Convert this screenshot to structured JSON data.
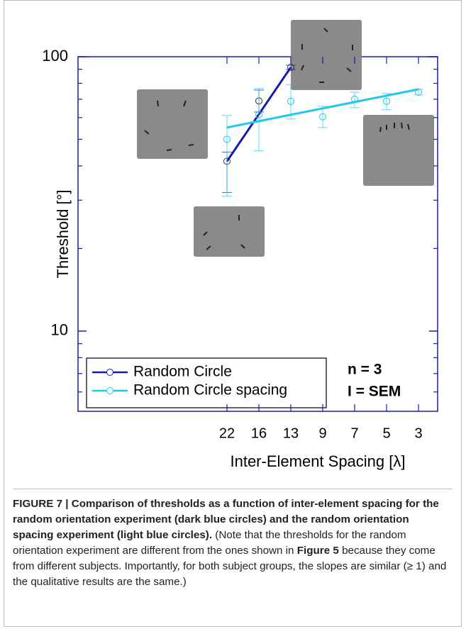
{
  "chart_data": {
    "type": "line",
    "ylabel": "Threshold [°]",
    "xlabel": "Inter-Element Spacing [λ]",
    "categories": [
      "22",
      "16",
      "13",
      "9",
      "7",
      "5",
      "3"
    ],
    "ylim": [
      5.1,
      100
    ],
    "yticks": [
      10,
      100
    ],
    "yticks_minor": [
      6,
      7,
      8,
      9,
      20,
      30,
      40,
      50,
      60,
      70,
      80,
      90
    ],
    "log_y": true,
    "legend": "lower left",
    "series": [
      {
        "name": "Random Circle",
        "color": "#1a1aa8",
        "values": [
          41.6,
          69,
          91.5,
          null,
          null,
          null,
          null
        ],
        "error_low": [
          32,
          62.9,
          89.9,
          null,
          null,
          null,
          null
        ],
        "error_high": [
          44.9,
          75.6,
          93.1,
          null,
          null,
          null,
          null
        ],
        "fit": [
          41.6,
          null,
          91.5,
          null,
          null,
          null,
          null
        ]
      },
      {
        "name": "Random Circle spacing",
        "color": "#1ec8f0",
        "values": [
          50,
          61.5,
          68.8,
          60.4,
          70,
          68.8,
          74.3
        ],
        "error_low": [
          31,
          45.4,
          59.3,
          55.2,
          65.2,
          64.1,
          72.6
        ],
        "error_high": [
          61.1,
          76.6,
          79,
          66,
          74.3,
          73.4,
          76.1
        ],
        "fit": [
          55.2,
          null,
          null,
          null,
          null,
          null,
          76.1
        ]
      }
    ],
    "annotations": [
      "n = 3",
      "I = SEM"
    ]
  },
  "caption": {
    "bold": "FIGURE 7 | Comparison of thresholds as a function of inter-element spacing for the random orientation experiment (dark blue circles) and the random orientation spacing experiment (light blue circles).",
    "text_1": "(Note that the thresholds for the random orientation experiment are different from the ones shown in",
    "bold_ref": "Figure 5",
    "text_2": "because they come from different subjects. Importantly, for both subject groups, the slopes are similar (≥ 1) and the qualitative results are the same.)"
  }
}
